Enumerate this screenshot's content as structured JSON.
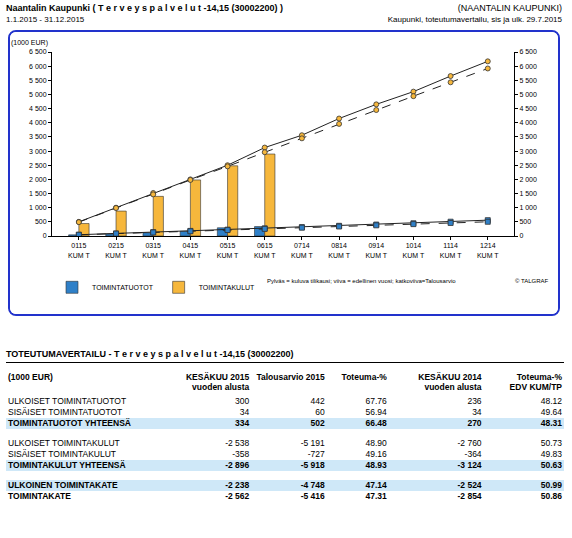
{
  "header": {
    "title": "Naantalin Kaupunki ( T e r v e y s p a l v e l u t -14,15 (30002200) )",
    "organization": "(NAANTALIN KAUPUNKI)",
    "period": "1.1.2015 - 31.12.2015",
    "report": "Kaupunki, toteutumavertailu, sis ja ulk. 29.7.2015"
  },
  "chart_data": {
    "type": "bar",
    "ylabel": "(1000 EUR)",
    "categories": [
      "0115 KUM T",
      "0215 KUM T",
      "0315 KUM T",
      "0415 KUM T",
      "0515 KUM T",
      "0615 KUM T",
      "0714 KUM T",
      "0814 KUM T",
      "0914 KUM T",
      "1014 KUM T",
      "1114 KUM T",
      "1214 KUM T"
    ],
    "series": [
      {
        "name": "TOIMINTATUOTOT",
        "color": "#2f80c8",
        "marker": "square",
        "values": [
          40,
          70,
          115,
          165,
          290,
          334,
          null,
          null,
          null,
          null,
          null,
          null
        ],
        "previous_year": [
          45,
          90,
          135,
          180,
          225,
          270,
          315,
          360,
          405,
          450,
          505,
          560
        ],
        "budget": [
          42,
          84,
          126,
          168,
          210,
          251,
          293,
          335,
          377,
          419,
          460,
          502
        ]
      },
      {
        "name": "TOIMINTAKULUT",
        "color": "#f6b73c",
        "marker": "circle",
        "values": [
          440,
          880,
          1400,
          1980,
          2480,
          2896,
          null,
          null,
          null,
          null,
          null,
          null
        ],
        "previous_year": [
          500,
          1000,
          1520,
          2000,
          2500,
          3124,
          3560,
          4150,
          4650,
          5100,
          5650,
          6170
        ],
        "budget": [
          490,
          990,
          1470,
          1980,
          2460,
          2960,
          3450,
          3960,
          4450,
          4940,
          5430,
          5918
        ]
      }
    ],
    "ylim": [
      0,
      6500
    ],
    "yticks": [
      0,
      500,
      {
        "value": 1000,
        "label": "1 000"
      },
      {
        "value": 1500,
        "label": "1 500"
      },
      {
        "value": 2000,
        "label": "2 000"
      },
      {
        "value": 2500,
        "label": "2 500"
      },
      {
        "value": 3000,
        "label": "3 000"
      },
      {
        "value": 3500,
        "label": "3 500"
      },
      {
        "value": 4000,
        "label": "4 000"
      },
      {
        "value": 4500,
        "label": "4 500"
      },
      {
        "value": 5000,
        "label": "5 000"
      },
      {
        "value": 5500,
        "label": "5 500"
      },
      {
        "value": 6000,
        "label": "6 000"
      },
      {
        "value": 6500,
        "label": "6 500"
      }
    ],
    "y2lim": [
      0,
      6500
    ],
    "y2ticks": [
      0,
      500,
      {
        "value": 1000,
        "label": "1 000"
      },
      {
        "value": 1500,
        "label": "1 500"
      },
      {
        "value": 2000,
        "label": "2 000"
      },
      {
        "value": 2500,
        "label": "2 500"
      },
      {
        "value": 3000,
        "label": "3 000"
      },
      {
        "value": 3500,
        "label": "3 500"
      },
      {
        "value": 4000,
        "label": "4 000"
      },
      {
        "value": 4500,
        "label": "4 500"
      },
      {
        "value": 5000,
        "label": "5 000"
      },
      {
        "value": 5500,
        "label": "5 500"
      },
      {
        "value": 6000,
        "label": "6 000"
      },
      {
        "value": 6500,
        "label": "6 500"
      }
    ],
    "grid": false,
    "legend": "bottom",
    "legend_note": "Pylväs = kuluva tilikausi; viiva = edellinen vuosi; katkoviiva=Talousarvio",
    "credit": "© TALGRAF"
  },
  "table": {
    "title": "TOTEUTUMAVERTAILU - T e r v e y s p a l v e l u t -14,15 (30002200)",
    "columns": [
      "(1000 EUR)",
      "KESÄKUU 2015\nvuoden alusta",
      "Talousarvio 2015",
      "Toteuma-%",
      "KESÄKUU 2014\nvuoden alusta",
      "Toteuma-%\nEDV KUM/TP"
    ],
    "sections": [
      [
        {
          "cells": [
            "ULKOISET TOIMINTATUOTOT",
            "300",
            "442",
            "67.76",
            "236",
            "48.12"
          ]
        },
        {
          "cells": [
            "SISÄISET TOIMINTATUOTOT",
            "34",
            "60",
            "56.94",
            "34",
            "49.64"
          ]
        },
        {
          "cells": [
            "TOIMINTATUOTOT YHTEENSÄ",
            "334",
            "502",
            "66.48",
            "270",
            "48.31"
          ],
          "highlight": true,
          "bold": true
        }
      ],
      [
        {
          "cells": [
            "ULKOISET TOIMINTAKULUT",
            "-2 538",
            "-5 191",
            "48.90",
            "-2 760",
            "50.73"
          ]
        },
        {
          "cells": [
            "SISÄISET TOIMINTAKULUT",
            "-358",
            "-727",
            "49.16",
            "-364",
            "49.83"
          ]
        },
        {
          "cells": [
            "TOIMINTAKULUT YHTEENSÄ",
            "-2 896",
            "-5 918",
            "48.93",
            "-3 124",
            "50.63"
          ],
          "highlight": true,
          "bold": true
        }
      ],
      [
        {
          "cells": [
            "ULKOINEN TOIMINTAKATE",
            "-2 238",
            "-4 748",
            "47.14",
            "-2 524",
            "50.99"
          ],
          "highlight": true,
          "bold": true
        },
        {
          "cells": [
            "TOIMINTAKATE",
            "-2 562",
            "-5 416",
            "47.31",
            "-2 854",
            "50.86"
          ],
          "bold": true
        }
      ]
    ]
  }
}
